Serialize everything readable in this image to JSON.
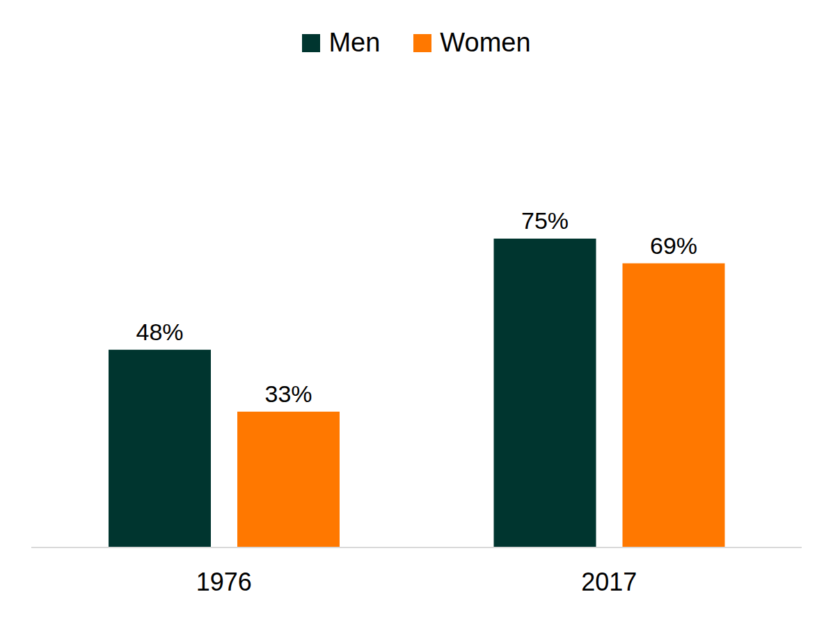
{
  "chart_data": {
    "type": "bar",
    "categories": [
      "1976",
      "2017"
    ],
    "series": [
      {
        "name": "Men",
        "color": "#00352f",
        "values": [
          48,
          75
        ],
        "value_labels": [
          "48%",
          "75%"
        ]
      },
      {
        "name": "Women",
        "color": "#ff7800",
        "values": [
          33,
          69
        ],
        "value_labels": [
          "33%",
          "69%"
        ]
      }
    ],
    "ylim": [
      0,
      100
    ],
    "data_labels": true,
    "tick_labels": "x",
    "legend": "top",
    "grid": false
  }
}
